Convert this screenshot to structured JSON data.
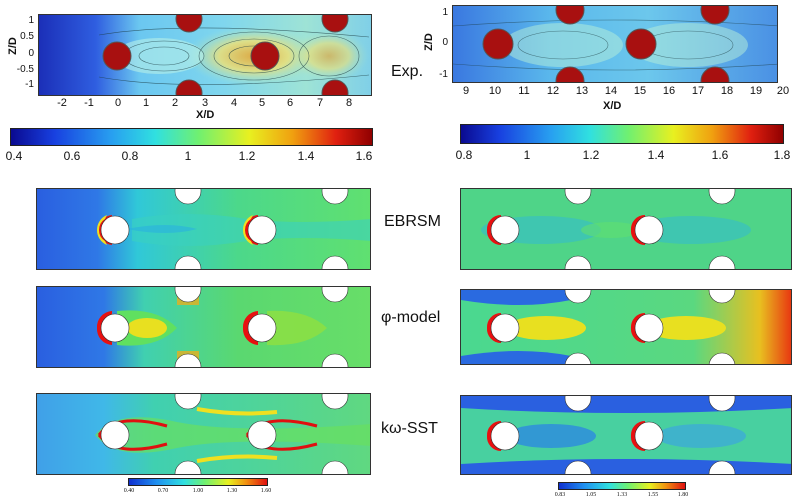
{
  "labels": {
    "exp": "Exp.",
    "ebrsm": "EBRSM",
    "phi": "φ-model",
    "kw": "kω-SST"
  },
  "left_panel": {
    "xlabel": "X/D",
    "ylabel": "Z/D",
    "xticks": [
      "-2",
      "-1",
      "0",
      "1",
      "2",
      "3",
      "4",
      "5",
      "6",
      "7",
      "8"
    ],
    "yticks": [
      "1",
      "0.5",
      "0",
      "-0.5",
      "-1"
    ],
    "colorbar": [
      "0.4",
      "0.6",
      "0.8",
      "1",
      "1.2",
      "1.4",
      "1.6"
    ],
    "small_colorbar": [
      "0.40",
      "0.70",
      "1.00",
      "1.30",
      "1.60"
    ]
  },
  "right_panel": {
    "xlabel": "X/D",
    "ylabel": "Z/D",
    "xticks": [
      "9",
      "10",
      "11",
      "12",
      "13",
      "14",
      "15",
      "16",
      "17",
      "18",
      "19",
      "20"
    ],
    "yticks": [
      "1",
      "0",
      "-1"
    ],
    "colorbar": [
      "0.8",
      "1",
      "1.2",
      "1.4",
      "1.6",
      "1.8"
    ],
    "small_colorbar": [
      "0.83",
      "1.05",
      "1.33",
      "1.55",
      "1.80"
    ]
  },
  "colors": {
    "low": "#2a3bd6",
    "mid": "#46d17a",
    "high": "#d90a0a",
    "pin": "#c21010"
  }
}
